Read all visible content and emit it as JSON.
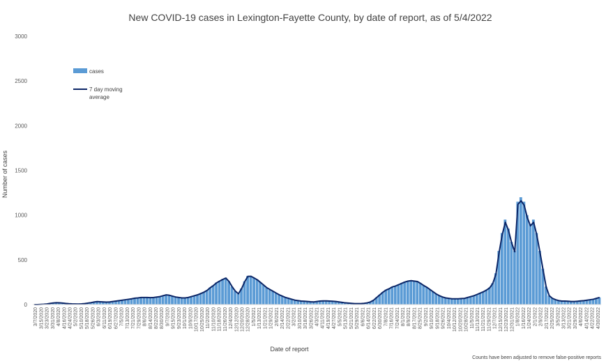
{
  "chart_data": {
    "type": "bar",
    "title": "New COVID-19 cases in Lexington-Fayette County, by date of report, as of 5/4/2022",
    "xlabel": "Date of report",
    "ylabel": "Number of cases",
    "ylim": [
      0,
      3000
    ],
    "yticks": [
      0,
      500,
      1000,
      1500,
      2000,
      2500,
      3000
    ],
    "x_tick_labels": [
      "3/7/2020",
      "3/15/2020",
      "3/23/2020",
      "3/31/2020",
      "4/8/2020",
      "4/16/2020",
      "4/24/2020",
      "5/2/2020",
      "5/10/2020",
      "5/18/2020",
      "5/26/2020",
      "6/3/2020",
      "6/11/2020",
      "6/19/2020",
      "6/27/2020",
      "7/5/2020",
      "7/13/2020",
      "7/21/2020",
      "7/29/2020",
      "8/6/2020",
      "8/14/2020",
      "8/22/2020",
      "8/30/2020",
      "9/7/2020",
      "9/15/2020",
      "9/23/2020",
      "10/1/2020",
      "10/9/2020",
      "10/17/2020",
      "10/25/2020",
      "11/2/2020",
      "11/10/2020",
      "11/18/2020",
      "11/26/2020",
      "12/4/2020",
      "12/12/2020",
      "12/20/2020",
      "12/28/2020",
      "1/5/2021",
      "1/13/2021",
      "1/21/2021",
      "1/29/2021",
      "2/6/2021",
      "2/14/2021",
      "2/22/2021",
      "3/2/2021",
      "3/10/2021",
      "3/18/2021",
      "3/26/2021",
      "4/3/2021",
      "4/11/2021",
      "4/19/2021",
      "4/27/2021",
      "5/5/2021",
      "5/13/2021",
      "5/21/2021",
      "5/29/2021",
      "6/6/2021",
      "6/14/2021",
      "6/22/2021",
      "6/30/2021",
      "7/8/2021",
      "7/16/2021",
      "7/24/2021",
      "8/1/2021",
      "8/9/2021",
      "8/17/2021",
      "8/25/2021",
      "9/2/2021",
      "9/10/2021",
      "9/18/2021",
      "9/26/2021",
      "10/4/2021",
      "10/12/2021",
      "10/20/2021",
      "10/28/2021",
      "11/5/2021",
      "11/13/2021",
      "11/21/2021",
      "11/29/2021",
      "12/7/2021",
      "12/15/2021",
      "12/23/2021",
      "12/31/2021",
      "1/8/2022",
      "1/16/2022",
      "1/24/2022",
      "2/1/2022",
      "2/9/2022",
      "2/17/2022",
      "2/25/2022",
      "3/5/2022",
      "3/13/2022",
      "3/21/2022",
      "3/29/2022",
      "4/6/2022",
      "4/14/2022",
      "4/22/2022",
      "4/30/2022"
    ],
    "series": [
      {
        "name": "cases",
        "kind": "bar",
        "color": "#5b9bd5",
        "values": [
          0,
          0,
          3,
          5,
          8,
          15,
          20,
          22,
          20,
          18,
          14,
          10,
          8,
          7,
          6,
          8,
          12,
          18,
          22,
          30,
          35,
          32,
          30,
          28,
          30,
          35,
          40,
          45,
          50,
          55,
          60,
          65,
          72,
          75,
          80,
          80,
          80,
          78,
          80,
          85,
          90,
          100,
          110,
          105,
          95,
          85,
          80,
          75,
          75,
          80,
          90,
          100,
          110,
          125,
          140,
          160,
          190,
          215,
          245,
          265,
          285,
          300,
          260,
          200,
          150,
          120,
          180,
          260,
          320,
          320,
          300,
          280,
          250,
          220,
          190,
          170,
          150,
          130,
          110,
          95,
          80,
          70,
          60,
          50,
          45,
          40,
          38,
          35,
          32,
          30,
          35,
          40,
          42,
          42,
          40,
          38,
          35,
          30,
          25,
          20,
          18,
          15,
          12,
          12,
          12,
          15,
          20,
          30,
          50,
          80,
          110,
          140,
          165,
          180,
          200,
          210,
          225,
          240,
          255,
          265,
          270,
          265,
          260,
          240,
          215,
          195,
          170,
          145,
          120,
          100,
          85,
          75,
          70,
          65,
          65,
          65,
          68,
          70,
          80,
          90,
          100,
          115,
          130,
          145,
          165,
          190,
          240,
          350,
          600,
          800,
          950,
          850,
          700,
          600,
          1150,
          1200,
          1150,
          1000,
          900,
          950,
          800,
          600,
          400,
          200,
          100,
          70,
          55,
          45,
          40,
          40,
          38,
          35,
          35,
          38,
          42,
          45,
          50,
          55,
          60,
          70,
          80
        ]
      },
      {
        "name": "7 day moving average",
        "kind": "line",
        "color": "#0b2566",
        "values": [
          0,
          0,
          2,
          4,
          7,
          13,
          18,
          20,
          19,
          17,
          13,
          10,
          8,
          7,
          6,
          8,
          11,
          16,
          21,
          28,
          33,
          31,
          29,
          27,
          29,
          34,
          39,
          44,
          49,
          54,
          59,
          64,
          71,
          74,
          79,
          79,
          79,
          77,
          79,
          84,
          89,
          99,
          108,
          104,
          94,
          84,
          79,
          74,
          74,
          79,
          89,
          99,
          109,
          123,
          138,
          158,
          188,
          212,
          242,
          262,
          281,
          296,
          258,
          199,
          150,
          121,
          178,
          256,
          315,
          316,
          297,
          277,
          248,
          219,
          189,
          169,
          149,
          129,
          109,
          94,
          79,
          69,
          59,
          49,
          44,
          39,
          37,
          34,
          31,
          29,
          34,
          39,
          41,
          41,
          39,
          37,
          34,
          29,
          24,
          19,
          17,
          14,
          11,
          11,
          11,
          14,
          19,
          29,
          48,
          78,
          108,
          138,
          162,
          177,
          197,
          207,
          222,
          237,
          252,
          262,
          267,
          262,
          257,
          237,
          213,
          193,
          168,
          143,
          118,
          99,
          84,
          74,
          69,
          64,
          64,
          64,
          67,
          69,
          79,
          89,
          99,
          113,
          128,
          143,
          162,
          186,
          235,
          340,
          580,
          780,
          920,
          830,
          690,
          590,
          1120,
          1160,
          1110,
          970,
          880,
          920,
          780,
          590,
          390,
          196,
          98,
          69,
          54,
          44,
          39,
          39,
          37,
          34,
          34,
          37,
          41,
          44,
          49,
          54,
          59,
          69,
          79
        ]
      }
    ],
    "legend_position": "top-left",
    "grid": false
  },
  "footnote": "Counts have been adjusted to remove false-positive reports"
}
